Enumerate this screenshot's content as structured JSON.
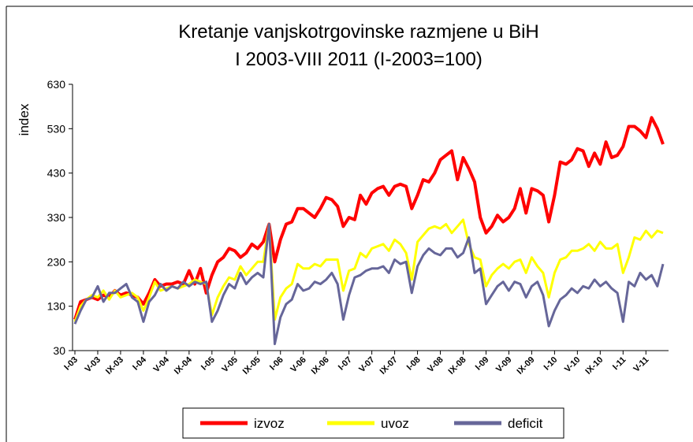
{
  "chart_data": {
    "type": "line",
    "title": "Kretanje vanjskotrgovinske razmjene u BiH",
    "subtitle": "I 2003-VIII 2011 (I-2003=100)",
    "y_label": "index",
    "ylim": [
      30,
      630
    ],
    "yticks": [
      30,
      130,
      230,
      330,
      430,
      530,
      630
    ],
    "legend": "bottom",
    "categories": [
      "I-03",
      null,
      null,
      null,
      "V-03",
      null,
      null,
      null,
      "IX-03",
      null,
      null,
      null,
      "I-04",
      null,
      null,
      null,
      "V-04",
      null,
      null,
      null,
      "IX-04",
      null,
      null,
      null,
      "I-05",
      null,
      null,
      null,
      "V-05",
      null,
      null,
      null,
      "IX-05",
      null,
      null,
      null,
      "I-06",
      null,
      null,
      null,
      "V-06",
      null,
      null,
      null,
      "IX-06",
      null,
      null,
      null,
      "I-07",
      null,
      null,
      null,
      "V-07",
      null,
      null,
      null,
      "IX-07",
      null,
      null,
      null,
      "I-08",
      null,
      null,
      null,
      "V-08",
      null,
      null,
      null,
      "IX-08",
      null,
      null,
      null,
      "I-09",
      null,
      null,
      null,
      "V-09",
      null,
      null,
      null,
      "IX-09",
      null,
      null,
      null,
      "I-10",
      null,
      null,
      null,
      "V-10",
      null,
      null,
      null,
      "IX-10",
      null,
      null,
      null,
      "I-11",
      null,
      null,
      null,
      "V-11",
      null,
      null,
      null
    ],
    "series": [
      {
        "name": "izvoz",
        "color": "#ff0000",
        "values": [
          100,
          140,
          145,
          150,
          145,
          155,
          150,
          165,
          155,
          160,
          155,
          150,
          135,
          160,
          190,
          175,
          180,
          180,
          185,
          180,
          210,
          180,
          215,
          160,
          200,
          230,
          240,
          260,
          255,
          240,
          250,
          270,
          260,
          275,
          315,
          230,
          280,
          315,
          320,
          350,
          350,
          340,
          330,
          350,
          375,
          370,
          355,
          310,
          330,
          325,
          380,
          360,
          385,
          395,
          400,
          380,
          400,
          405,
          400,
          350,
          380,
          415,
          410,
          430,
          460,
          470,
          480,
          415,
          465,
          440,
          410,
          330,
          295,
          310,
          335,
          320,
          330,
          350,
          395,
          340,
          395,
          390,
          380,
          320,
          380,
          455,
          450,
          460,
          485,
          480,
          445,
          475,
          450,
          500,
          465,
          470,
          490,
          535,
          535,
          525,
          510,
          555,
          530,
          495
        ]
      },
      {
        "name": "uvoz",
        "color": "#ffff00",
        "values": [
          95,
          130,
          145,
          155,
          150,
          165,
          145,
          165,
          150,
          155,
          160,
          150,
          120,
          150,
          185,
          165,
          170,
          175,
          170,
          175,
          180,
          190,
          185,
          180,
          110,
          150,
          175,
          195,
          190,
          220,
          200,
          215,
          230,
          230,
          315,
          100,
          150,
          170,
          180,
          225,
          215,
          215,
          225,
          220,
          235,
          235,
          235,
          165,
          210,
          215,
          250,
          240,
          260,
          265,
          270,
          255,
          280,
          270,
          250,
          190,
          275,
          290,
          305,
          310,
          305,
          315,
          295,
          310,
          325,
          270,
          240,
          235,
          175,
          200,
          215,
          225,
          215,
          230,
          235,
          205,
          240,
          220,
          205,
          150,
          205,
          235,
          240,
          255,
          255,
          260,
          270,
          255,
          275,
          260,
          260,
          270,
          205,
          240,
          285,
          280,
          300,
          285,
          300,
          295
        ]
      },
      {
        "name": "deficit",
        "color": "#666699",
        "values": [
          90,
          120,
          145,
          150,
          175,
          140,
          160,
          160,
          170,
          180,
          150,
          140,
          95,
          140,
          155,
          180,
          165,
          175,
          170,
          185,
          175,
          185,
          180,
          185,
          95,
          120,
          155,
          180,
          170,
          205,
          180,
          195,
          205,
          195,
          315,
          45,
          105,
          135,
          145,
          180,
          165,
          170,
          185,
          180,
          190,
          205,
          180,
          100,
          155,
          195,
          200,
          210,
          215,
          215,
          220,
          205,
          235,
          225,
          230,
          160,
          220,
          245,
          260,
          250,
          245,
          260,
          260,
          240,
          250,
          285,
          205,
          215,
          135,
          155,
          175,
          185,
          165,
          185,
          180,
          150,
          175,
          185,
          155,
          85,
          120,
          145,
          155,
          170,
          160,
          175,
          170,
          190,
          175,
          185,
          170,
          160,
          95,
          185,
          175,
          205,
          190,
          200,
          175,
          225
        ]
      }
    ]
  }
}
